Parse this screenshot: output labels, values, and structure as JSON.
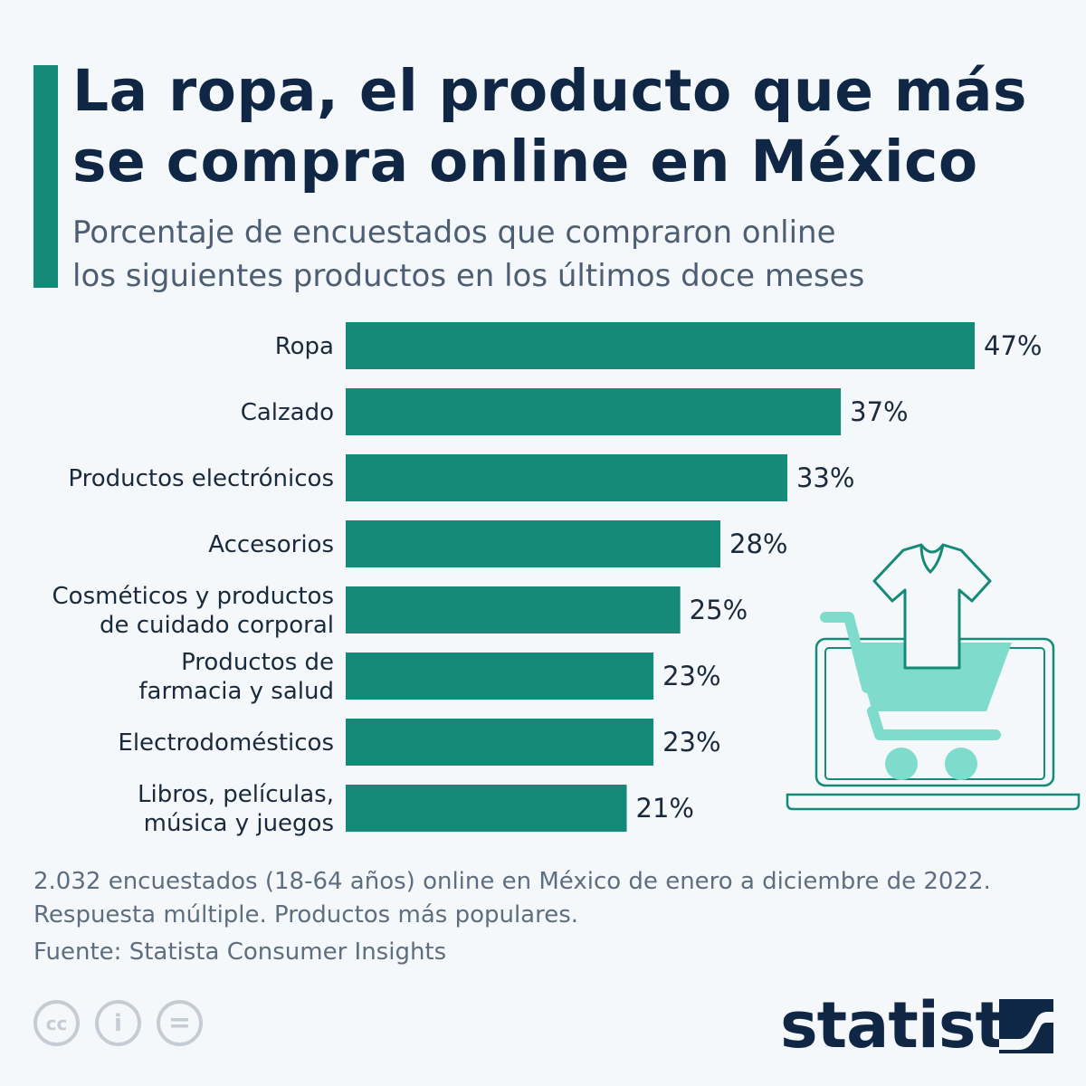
{
  "header": {
    "title_lines": [
      "La ropa, el producto que más",
      "se compra online en México"
    ],
    "subtitle_lines": [
      "Porcentaje de encuestados que compraron online",
      "los siguientes productos en los últimos doce meses"
    ]
  },
  "chart_data": {
    "type": "bar",
    "orientation": "horizontal",
    "categories": [
      [
        "Ropa"
      ],
      [
        "Calzado"
      ],
      [
        "Productos electrónicos"
      ],
      [
        "Accesorios"
      ],
      [
        "Cosméticos y productos",
        "de cuidado corporal"
      ],
      [
        "Productos de",
        "farmacia y salud"
      ],
      [
        "Electrodomésticos"
      ],
      [
        "Libros, películas,",
        "música y juegos"
      ]
    ],
    "values": [
      47,
      37,
      33,
      28,
      25,
      23,
      23,
      21
    ],
    "value_labels": [
      "47%",
      "37%",
      "33%",
      "28%",
      "25%",
      "23%",
      "23%",
      "21%"
    ],
    "unit": "%",
    "xlim": [
      0,
      47
    ],
    "grid": false,
    "bar_color": "#168a78"
  },
  "footer": {
    "note_lines": [
      "2.032 encuestados (18-64 años) online en México de enero a diciembre de 2022.",
      "Respuesta múltiple. Productos más populares."
    ],
    "source": "Fuente: Statista Consumer Insights",
    "license_icons": [
      "cc-icon",
      "attribution-icon",
      "no-derivatives-icon"
    ],
    "license_glyphs": [
      "cc",
      "i",
      "="
    ],
    "brand": "statista"
  },
  "colors": {
    "accent": "#168a78",
    "title": "#0f2744",
    "illustration": "#7fdccd"
  }
}
